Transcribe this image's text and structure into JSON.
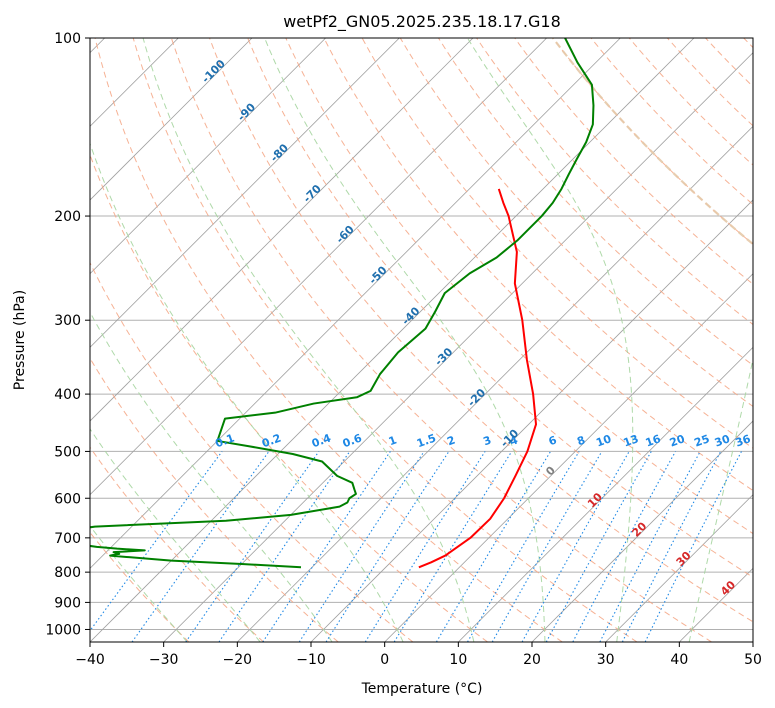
{
  "chart_data": {
    "type": "line",
    "subtype": "skew-t log-p sounding",
    "title": "wetPf2_GN05.2025.235.18.17.G18",
    "xlabel": "Temperature (°C)",
    "ylabel": "Pressure (hPa)",
    "xlim": [
      -40,
      50
    ],
    "ylim": [
      1050,
      100
    ],
    "y_scale": "log",
    "grid": true,
    "x_ticks": [
      -40,
      -30,
      -20,
      -10,
      0,
      10,
      20,
      30,
      40,
      50
    ],
    "x_tick_labels": [
      "−40",
      "−30",
      "−20",
      "−10",
      "0",
      "10",
      "20",
      "30",
      "40",
      "50"
    ],
    "y_ticks": [
      1000,
      900,
      800,
      700,
      600,
      500,
      400,
      300,
      200,
      100
    ],
    "y_tick_labels": [
      "1000",
      "900",
      "800",
      "700",
      "600",
      "500",
      "400",
      "300",
      "200",
      "100"
    ],
    "series": [
      {
        "kind": "temperature",
        "color": "#ff0000",
        "points": [
          [
            785,
            -5.5
          ],
          [
            770,
            -4.5
          ],
          [
            750,
            -3.5
          ],
          [
            700,
            -2.5
          ],
          [
            650,
            -2.4
          ],
          [
            600,
            -3.3
          ],
          [
            550,
            -4.8
          ],
          [
            500,
            -6.5
          ],
          [
            450,
            -9.0
          ],
          [
            400,
            -13.5
          ],
          [
            350,
            -19.0
          ],
          [
            300,
            -25.0
          ],
          [
            260,
            -31.0
          ],
          [
            230,
            -35.0
          ],
          [
            200,
            -41.0
          ],
          [
            190,
            -43.5
          ],
          [
            180,
            -46.0
          ]
        ]
      },
      {
        "kind": "dewpoint",
        "color": "#008000",
        "points": [
          [
            785,
            -21.5
          ],
          [
            775,
            -30
          ],
          [
            765,
            -40
          ],
          [
            755,
            -46
          ],
          [
            750,
            -49
          ],
          [
            745,
            -48
          ],
          [
            740,
            -49
          ],
          [
            735,
            -45
          ],
          [
            730,
            -49
          ],
          [
            725,
            -52
          ],
          [
            720,
            -54
          ],
          [
            700,
            -57
          ],
          [
            680,
            -58
          ],
          [
            670,
            -55
          ],
          [
            655,
            -38
          ],
          [
            640,
            -30
          ],
          [
            620,
            -24.5
          ],
          [
            610,
            -24
          ],
          [
            600,
            -24.3
          ],
          [
            590,
            -24
          ],
          [
            580,
            -24.8
          ],
          [
            565,
            -26
          ],
          [
            550,
            -29
          ],
          [
            520,
            -33
          ],
          [
            505,
            -38
          ],
          [
            490,
            -45
          ],
          [
            480,
            -50
          ],
          [
            440,
            -52
          ],
          [
            430,
            -46
          ],
          [
            415,
            -42
          ],
          [
            405,
            -37
          ],
          [
            395,
            -36
          ],
          [
            370,
            -37
          ],
          [
            340,
            -37.5
          ],
          [
            310,
            -37
          ],
          [
            290,
            -38
          ],
          [
            270,
            -39.2
          ],
          [
            250,
            -38.5
          ],
          [
            235,
            -37
          ],
          [
            220,
            -36.5
          ],
          [
            200,
            -36.5
          ],
          [
            190,
            -36.8
          ],
          [
            180,
            -37.5
          ],
          [
            170,
            -38.5
          ],
          [
            160,
            -39.5
          ],
          [
            150,
            -40.5
          ],
          [
            140,
            -42
          ],
          [
            130,
            -44.5
          ],
          [
            120,
            -47.5
          ],
          [
            110,
            -52.5
          ],
          [
            100,
            -57.5
          ]
        ]
      }
    ],
    "dry_adiabats": [
      -30,
      -20,
      -10,
      0,
      10,
      20,
      30,
      40,
      50,
      60,
      70,
      80,
      90,
      100,
      110,
      120,
      130,
      140,
      150,
      160,
      170,
      180,
      190,
      200,
      210
    ],
    "moist_adiabats": [
      -30,
      -20,
      -10,
      0,
      10,
      20,
      30,
      40
    ],
    "mixing_ratio_labels": [
      "0.1",
      "0.2",
      "0.4",
      "0.6",
      "1",
      "1.5",
      "2",
      "3",
      "4",
      "6",
      "8",
      "10",
      "13",
      "16",
      "20",
      "25",
      "30",
      "36"
    ],
    "isotherm_labels_cold": [
      "-100",
      "-90",
      "-80",
      "-70",
      "-60",
      "-50",
      "-40",
      "-30",
      "-20",
      "-10"
    ],
    "isotherm_labels_warm": [
      "0",
      "10",
      "20",
      "30",
      "40"
    ],
    "colors": {
      "temperature": "#ff0000",
      "dewpoint": "#008000",
      "isotherm_grid": "#a0a0a0",
      "dry_adiabat": "#f4a582",
      "moist_adiabat": "#a6d5a0",
      "mixing_ratio": "#1e88e5",
      "cold_isotherm_label": "#1f6fae",
      "zero_isotherm_label": "#808080",
      "warm_isotherm_label": "#d62728",
      "mixing_label": "#1e88e5",
      "special_curve": "#e6c9a8"
    }
  }
}
